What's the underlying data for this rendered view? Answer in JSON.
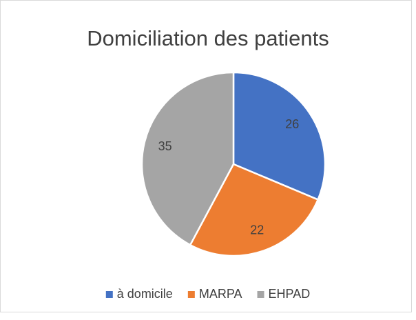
{
  "chart_data": {
    "type": "pie",
    "title": "Domiciliation des patients",
    "categories": [
      "à domicile",
      "MARPA",
      "EHPAD"
    ],
    "values": [
      26,
      22,
      35
    ],
    "colors": [
      "#4472c4",
      "#ed7d31",
      "#a5a5a5"
    ],
    "legend": "bottom"
  }
}
